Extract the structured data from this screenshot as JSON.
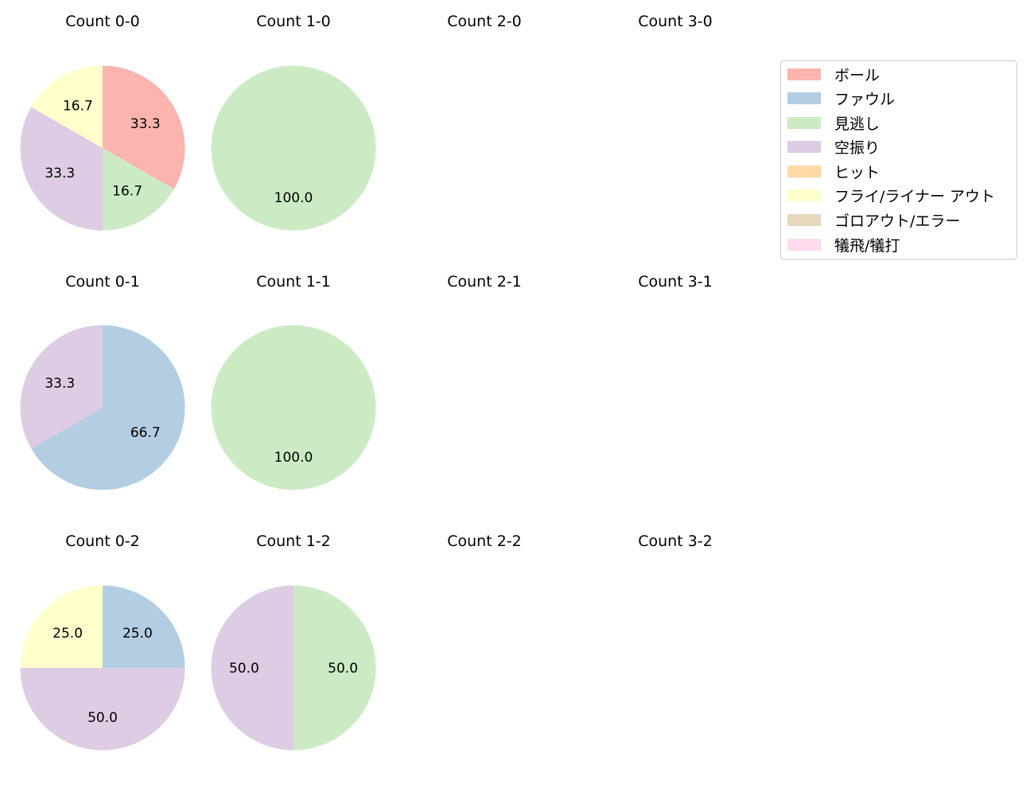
{
  "chart_data": {
    "type": "pie",
    "categories": [
      "ボール",
      "ファウル",
      "見逃し",
      "空振り",
      "ヒット",
      "フライ/ライナー アウト",
      "ゴロアウト/エラー",
      "犠飛/犠打"
    ],
    "colors": [
      "#FBB4AE",
      "#B3CDE3",
      "#CCEBC5",
      "#DECBE4",
      "#FED9A6",
      "#FFFFCC",
      "#E5D8BD",
      "#FDDAEC"
    ],
    "panels": [
      {
        "title": "Count 0-0",
        "slices": [
          {
            "category": "ボール",
            "value": 33.3
          },
          {
            "category": "見逃し",
            "value": 16.7
          },
          {
            "category": "空振り",
            "value": 33.3
          },
          {
            "category": "フライ/ライナー アウト",
            "value": 16.7
          }
        ]
      },
      {
        "title": "Count 1-0",
        "slices": [
          {
            "category": "見逃し",
            "value": 100.0
          }
        ]
      },
      {
        "title": "Count 2-0",
        "slices": []
      },
      {
        "title": "Count 3-0",
        "slices": []
      },
      {
        "title": "Count 0-1",
        "slices": [
          {
            "category": "ファウル",
            "value": 66.7
          },
          {
            "category": "空振り",
            "value": 33.3
          }
        ]
      },
      {
        "title": "Count 1-1",
        "slices": [
          {
            "category": "見逃し",
            "value": 100.0
          }
        ]
      },
      {
        "title": "Count 2-1",
        "slices": []
      },
      {
        "title": "Count 3-1",
        "slices": []
      },
      {
        "title": "Count 0-2",
        "slices": [
          {
            "category": "ファウル",
            "value": 25.0
          },
          {
            "category": "空振り",
            "value": 50.0
          },
          {
            "category": "フライ/ライナー アウト",
            "value": 25.0
          }
        ]
      },
      {
        "title": "Count 1-2",
        "slices": [
          {
            "category": "見逃し",
            "value": 50.0
          },
          {
            "category": "空振り",
            "value": 50.0
          }
        ]
      },
      {
        "title": "Count 2-2",
        "slices": []
      },
      {
        "title": "Count 3-2",
        "slices": []
      }
    ],
    "legend_position": "upper right"
  },
  "titles": [
    "Count 0-0",
    "Count 1-0",
    "Count 2-0",
    "Count 3-0",
    "Count 0-1",
    "Count 1-1",
    "Count 2-1",
    "Count 3-1",
    "Count 0-2",
    "Count 1-2",
    "Count 2-2",
    "Count 3-2"
  ],
  "legend": {
    "items": [
      {
        "label": "ボール",
        "color": "#FBB4AE"
      },
      {
        "label": "ファウル",
        "color": "#B3CDE3"
      },
      {
        "label": "見逃し",
        "color": "#CCEBC5"
      },
      {
        "label": "空振り",
        "color": "#DECBE4"
      },
      {
        "label": "ヒット",
        "color": "#FED9A6"
      },
      {
        "label": "フライ/ライナー アウト",
        "color": "#FFFFCC"
      },
      {
        "label": "ゴロアウト/エラー",
        "color": "#E5D8BD"
      },
      {
        "label": "犠飛/犠打",
        "color": "#FDDAEC"
      }
    ]
  }
}
